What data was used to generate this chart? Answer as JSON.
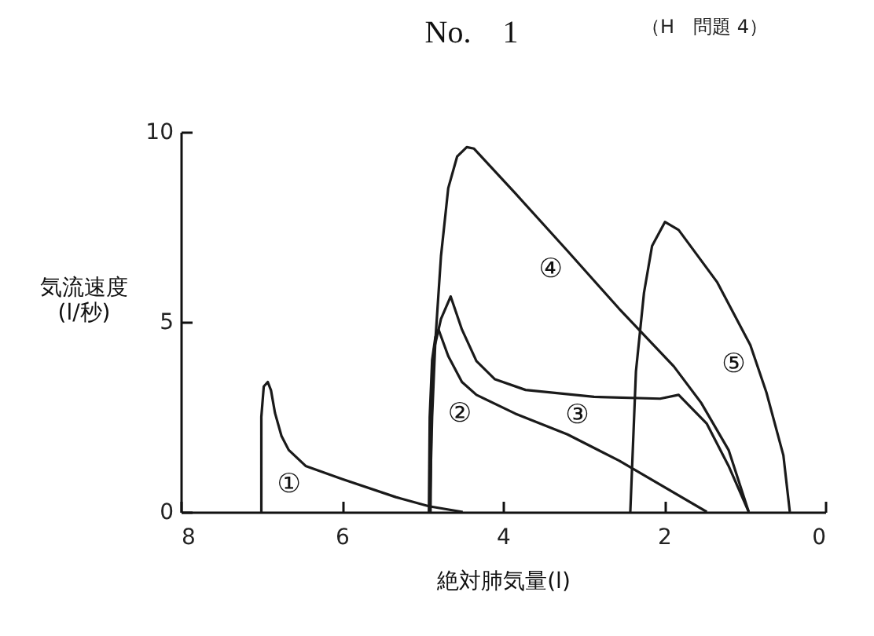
{
  "chart_data": {
    "type": "line",
    "title": "No.　1",
    "subtitle": "（H　問題 4）",
    "xlabel": "絶対肺気量(l)",
    "ylabel": "気流速度\n(l/秒)",
    "xlim": [
      8,
      0
    ],
    "xticks": [
      8,
      6,
      4,
      2,
      0
    ],
    "ylim": [
      0,
      10
    ],
    "yticks": [
      0,
      5,
      10
    ],
    "grid": false,
    "legend": false,
    "marker": "none",
    "line_style": "solid",
    "series": [
      {
        "name": "①",
        "color": "#1a1a1a",
        "x": [
          7.0,
          7.0,
          6.97,
          6.92,
          6.88,
          6.83,
          6.75,
          6.66,
          6.45,
          6.0,
          5.33,
          4.92,
          4.5
        ],
        "values": [
          0,
          2.5,
          3.3,
          3.42,
          3.2,
          2.6,
          2.0,
          1.63,
          1.21,
          0.87,
          0.39,
          0.15,
          0
        ]
      },
      {
        "name": "②",
        "color": "#1a1a1a",
        "x": [
          4.92,
          4.91,
          4.88,
          4.84,
          4.8,
          4.68,
          4.51,
          4.33,
          3.85,
          3.2,
          2.56,
          1.47
        ],
        "values": [
          0,
          2.5,
          4.0,
          4.6,
          4.8,
          4.1,
          3.42,
          3.08,
          2.59,
          2.04,
          1.35,
          0
        ]
      },
      {
        "name": "③",
        "color": "#1a1a1a",
        "x": [
          4.9,
          4.89,
          4.86,
          4.77,
          4.65,
          4.51,
          4.33,
          4.1,
          3.72,
          2.87,
          2.05,
          1.82,
          1.47,
          1.2,
          0.95
        ],
        "values": [
          0,
          2.5,
          4.25,
          5.08,
          5.67,
          4.8,
          3.97,
          3.49,
          3.21,
          3.03,
          2.98,
          3.08,
          2.32,
          1.21,
          0
        ]
      },
      {
        "name": "④",
        "color": "#1a1a1a",
        "x": [
          4.91,
          4.88,
          4.84,
          4.77,
          4.68,
          4.57,
          4.45,
          4.36,
          3.85,
          3.2,
          2.56,
          1.88,
          1.54,
          1.2,
          0.95
        ],
        "values": [
          0,
          2.5,
          4.5,
          6.73,
          8.52,
          9.35,
          9.6,
          9.56,
          8.39,
          6.87,
          5.35,
          3.83,
          2.87,
          1.63,
          0
        ]
      },
      {
        "name": "⑤",
        "color": "#1a1a1a",
        "x": [
          2.42,
          2.35,
          2.25,
          2.15,
          1.99,
          1.82,
          1.34,
          0.93,
          0.73,
          0.52,
          0.44
        ],
        "values": [
          0,
          3.7,
          5.77,
          7.0,
          7.63,
          7.42,
          6.04,
          4.39,
          3.14,
          1.49,
          0
        ]
      }
    ]
  }
}
